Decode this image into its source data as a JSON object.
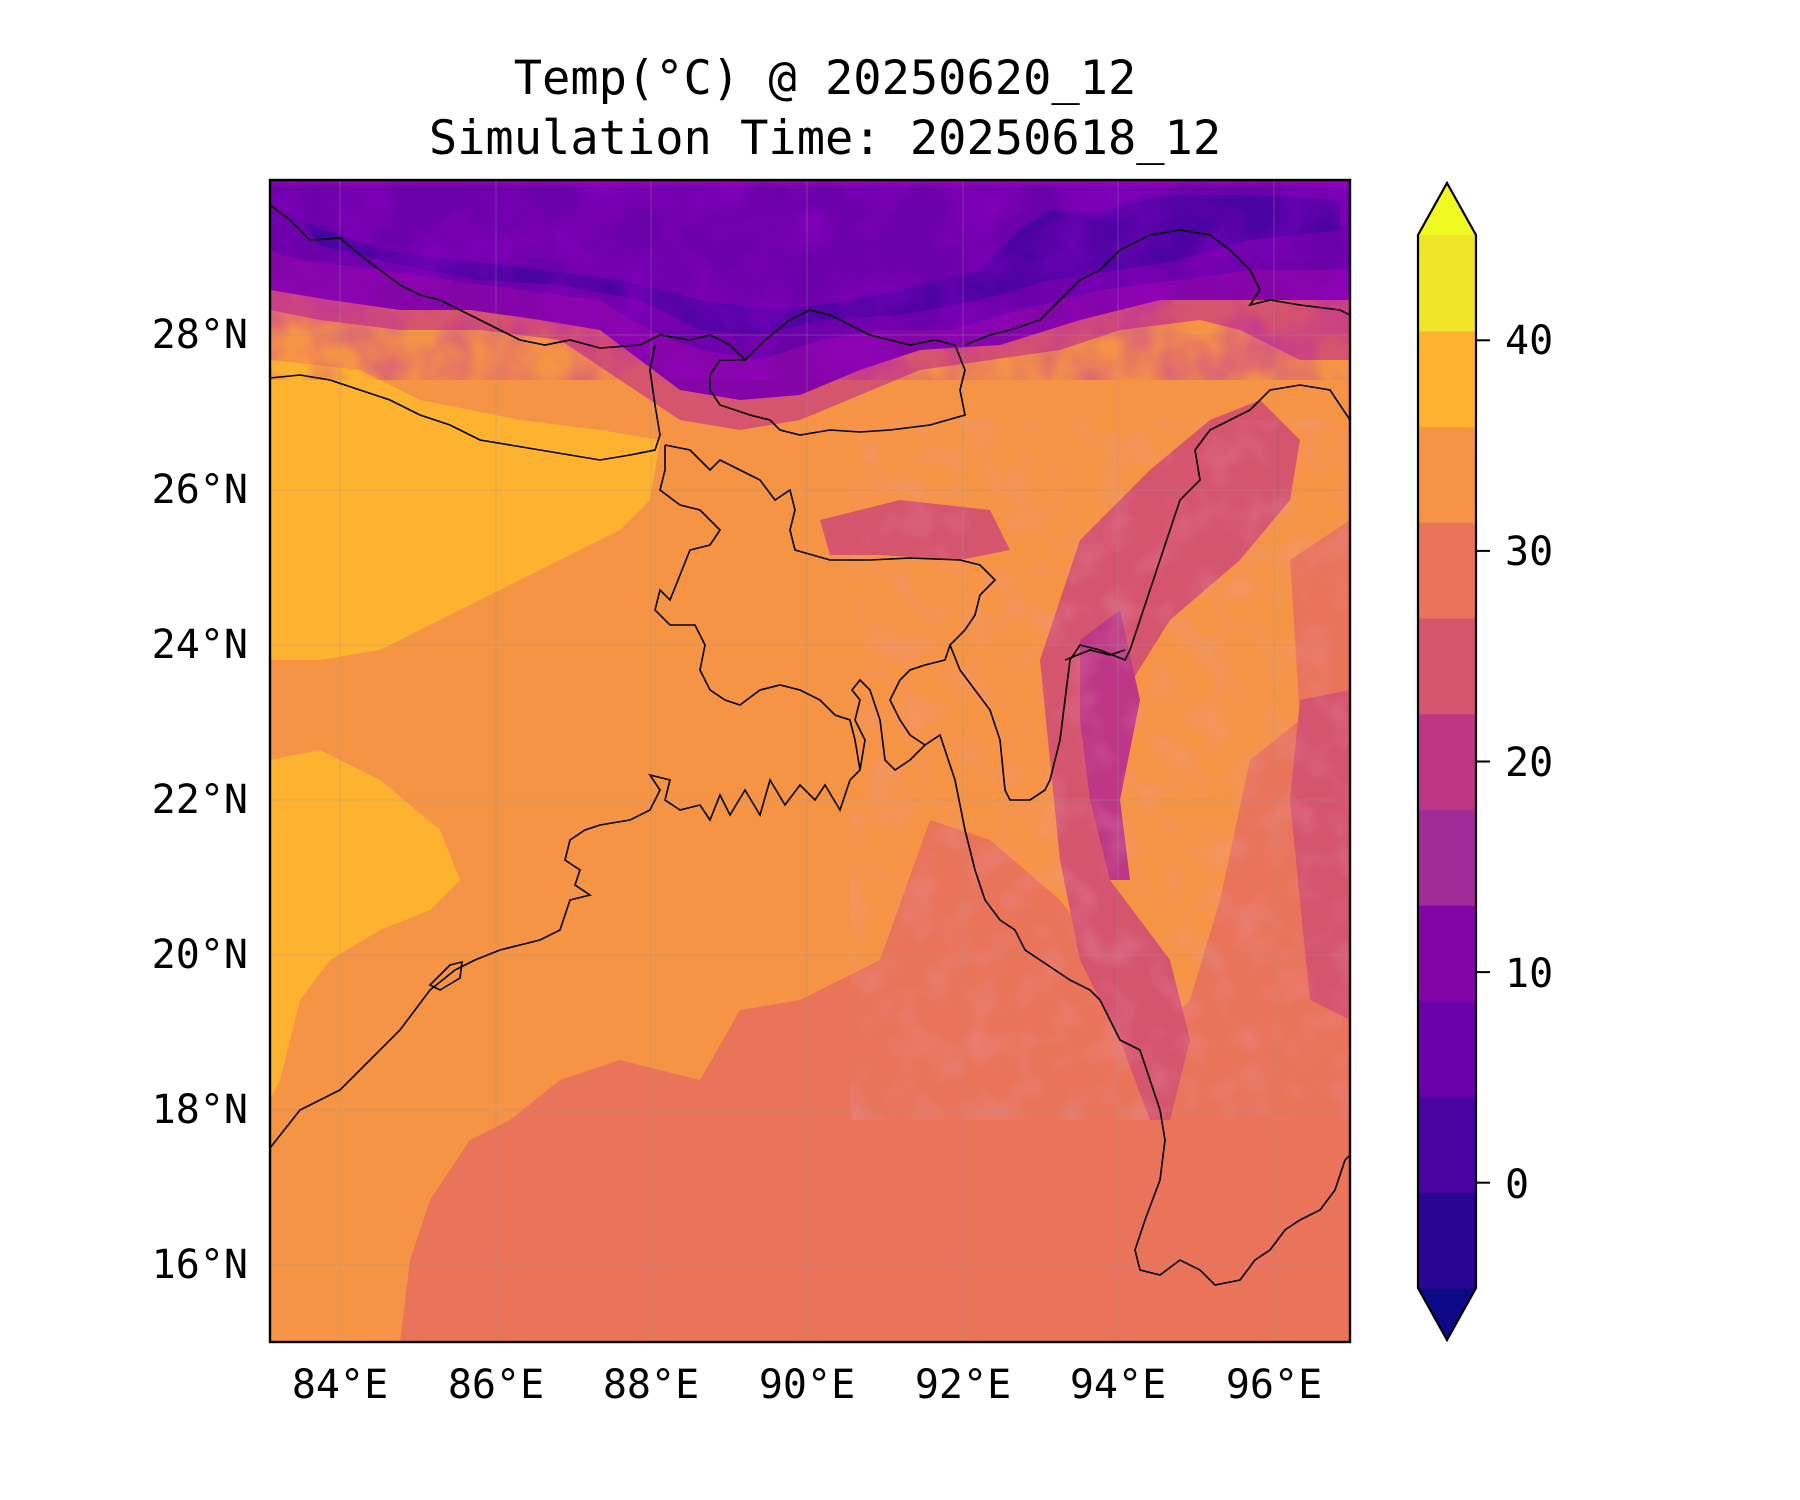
{
  "title": {
    "line1": "Temp(°C) @ 20250620_12",
    "line2": "Simulation Time: 20250618_12"
  },
  "map": {
    "lon_range": [
      83.0,
      97.0
    ],
    "lat_range": [
      15.0,
      30.0
    ],
    "lon_ticks": [
      "84°E",
      "86°E",
      "88°E",
      "90°E",
      "92°E",
      "94°E",
      "96°E"
    ],
    "lat_ticks": [
      "28°N",
      "26°N",
      "24°N",
      "22°N",
      "20°N",
      "18°N",
      "16°N"
    ],
    "grid": true,
    "features": [
      "coastlines",
      "country-borders"
    ]
  },
  "colorbar": {
    "ticks": [
      "40",
      "30",
      "20",
      "10",
      "0"
    ],
    "min": -5,
    "max": 45,
    "step": 5,
    "extend": "both",
    "colormap": "plasma",
    "colors": [
      "#0d0887",
      "#2a0593",
      "#4903a0",
      "#6900a8",
      "#8305a7",
      "#a22b97",
      "#bd3786",
      "#d5546e",
      "#e9745a",
      "#f69446",
      "#fdb32f",
      "#f1e52a",
      "#f0f921"
    ]
  }
}
